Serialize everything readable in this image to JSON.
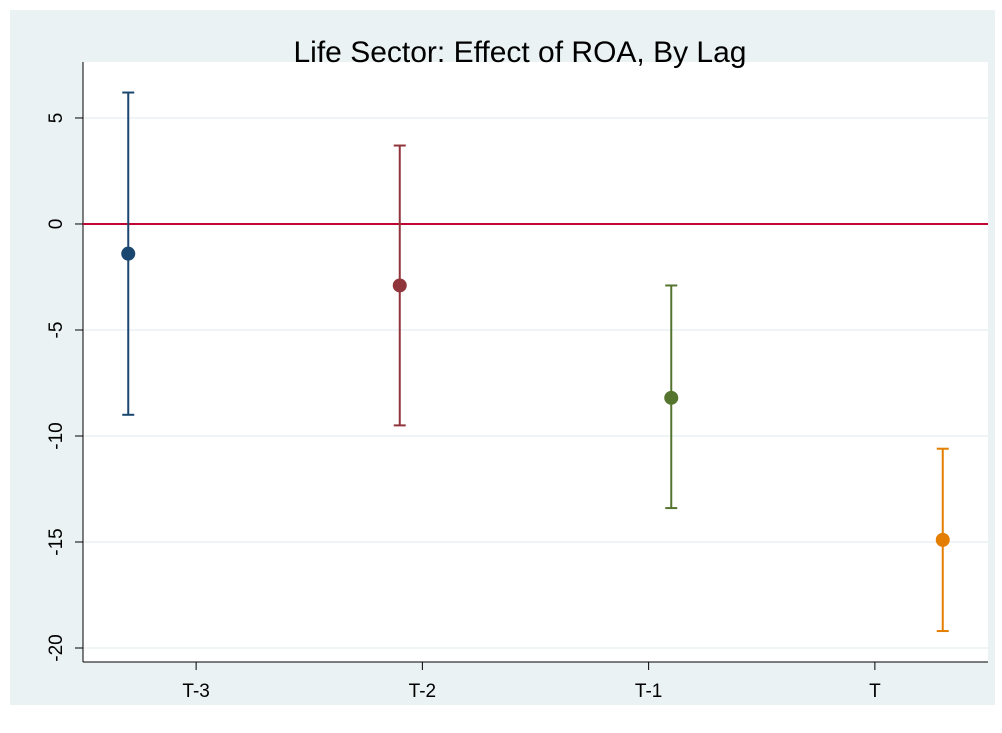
{
  "chart_data": {
    "type": "errorbar",
    "title": "Life Sector: Effect of ROA, By Lag",
    "x": [
      0.7,
      1.9,
      3.1,
      4.3
    ],
    "values": [
      -1.4,
      -2.9,
      -8.2,
      -14.9
    ],
    "lower": [
      -9.0,
      -9.5,
      -13.4,
      -19.2
    ],
    "upper": [
      6.2,
      3.7,
      -2.9,
      -10.6
    ],
    "colors": [
      "#1a476f",
      "#90353b",
      "#55752f",
      "#e37e00"
    ],
    "xlim": [
      0.5,
      4.5
    ],
    "xticks": [
      {
        "value": 1,
        "label": "T-3"
      },
      {
        "value": 2,
        "label": "T-2"
      },
      {
        "value": 3,
        "label": "T-1"
      },
      {
        "value": 4,
        "label": "T"
      }
    ],
    "ylim": [
      -20.66,
      7.64
    ],
    "yticks": [
      -20,
      -15,
      -10,
      -5,
      0,
      5
    ],
    "grid": true,
    "yline": 0,
    "yline_color": "#c10534"
  }
}
